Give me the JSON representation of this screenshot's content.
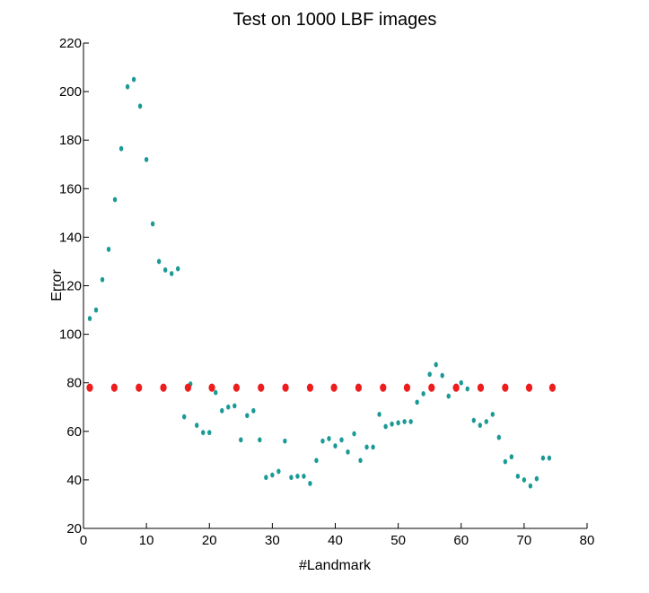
{
  "chart_data": {
    "type": "scatter",
    "title": "Test on 1000 LBF images",
    "xlabel": "#Landmark",
    "ylabel": "Error",
    "xlim": [
      0,
      80
    ],
    "ylim": [
      20,
      220
    ],
    "xticks": [
      0,
      10,
      20,
      30,
      40,
      50,
      60,
      70,
      80
    ],
    "yticks": [
      20,
      40,
      60,
      80,
      100,
      120,
      140,
      160,
      180,
      200,
      220
    ],
    "grid": false,
    "legend": "none",
    "series": [
      {
        "color": "#1a9a96",
        "x": [
          1,
          2,
          3,
          4,
          5,
          6,
          7,
          8,
          9,
          10,
          11,
          12,
          13,
          14,
          15,
          16,
          17,
          18,
          19,
          20,
          21,
          22,
          23,
          24,
          25,
          26,
          27,
          28,
          29,
          30,
          31,
          32,
          33,
          34,
          35,
          36,
          37,
          38,
          39,
          40,
          41,
          42,
          43,
          44,
          45,
          46,
          47,
          48,
          49,
          50,
          51,
          52,
          53,
          54,
          55,
          56,
          57,
          58,
          59,
          60,
          61,
          62,
          63,
          64,
          65,
          66,
          67,
          68,
          69,
          70,
          71,
          72,
          73,
          74
        ],
        "y": [
          106.5,
          110,
          122.5,
          135,
          155.5,
          176.5,
          202,
          205,
          194,
          172,
          145.5,
          130,
          126.5,
          125,
          127,
          66,
          79.5,
          62.5,
          59.5,
          59.5,
          76,
          68.5,
          70,
          70.5,
          56.5,
          66.5,
          68.5,
          56.5,
          41,
          42,
          43.5,
          56,
          41,
          41.5,
          41.5,
          38.5,
          48,
          56,
          57,
          54,
          56.5,
          51.5,
          59,
          48,
          53.5,
          53.5,
          67,
          62,
          63,
          63.5,
          64,
          64,
          72,
          75.5,
          83.5,
          87.5,
          83,
          74.5,
          78,
          80,
          77.5,
          64.5,
          62.5,
          64,
          67,
          57.5,
          47.5,
          49.5,
          41.5,
          40,
          37.5,
          40.5,
          49,
          49
        ]
      },
      {
        "color": "#ee1c1c",
        "x": [
          1,
          4.9,
          8.8,
          12.7,
          16.6,
          20.4,
          24.3,
          28.2,
          32.1,
          36,
          39.8,
          43.7,
          47.6,
          51.4,
          55.3,
          59.2,
          63.1,
          67,
          70.8,
          74.5
        ],
        "y": [
          78,
          78,
          78,
          78,
          78,
          78,
          78,
          78,
          78,
          78,
          78,
          78,
          78,
          78,
          78,
          78,
          78,
          78,
          78,
          78
        ]
      }
    ]
  }
}
